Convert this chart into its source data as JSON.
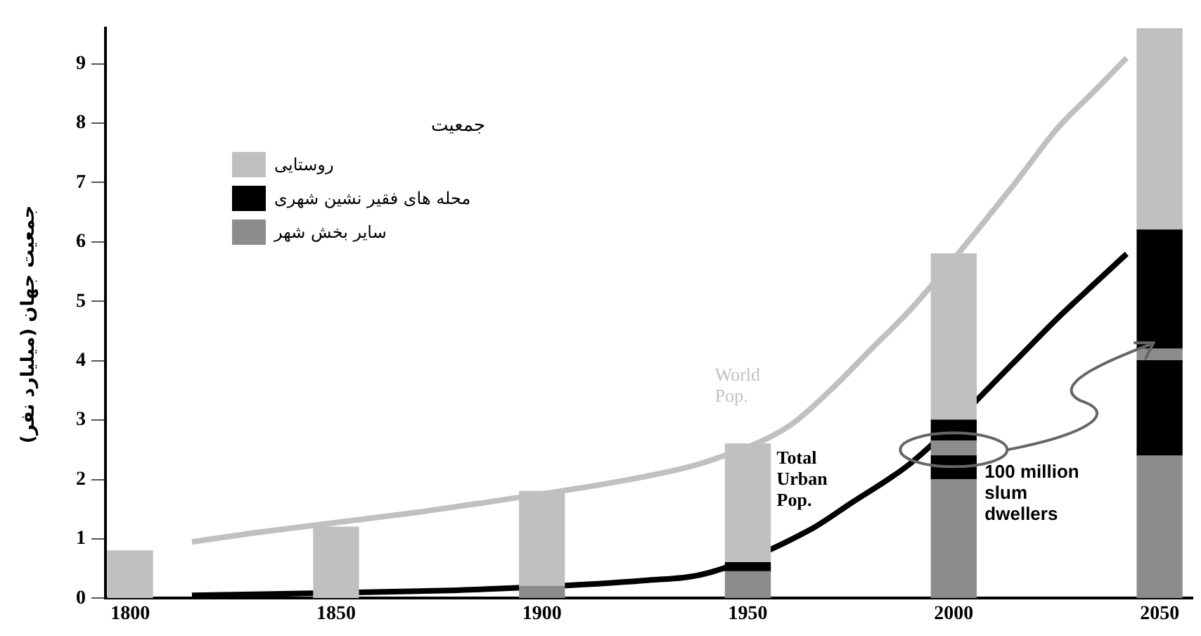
{
  "chart_data": {
    "type": "bar",
    "stacked": true,
    "ylabel": "جمعیت جهان (میلیارد نفر)",
    "legend_title": "جمعیت",
    "legend": "top left",
    "grid": false,
    "x": [
      1800,
      1850,
      1900,
      1950,
      2000,
      2050
    ],
    "xlim": [
      1794,
      2058
    ],
    "xticks": [
      1800,
      1850,
      1900,
      1950,
      2000,
      2050
    ],
    "ylim": [
      0,
      9.6
    ],
    "yticks": [
      0,
      1,
      2,
      3,
      4,
      5,
      6,
      7,
      8,
      9
    ],
    "series": [
      {
        "name": "سایر بخش شهر",
        "color": "#8c8c8c",
        "values": [
          null,
          null,
          0.2,
          0.45,
          2.0,
          2.4
        ]
      },
      {
        "name": "محله های فقیر نشین شهری",
        "color": "#000000",
        "values": [
          null,
          null,
          null,
          0.15,
          0.4,
          1.6
        ]
      },
      {
        "color": "#8c8c8c",
        "values": [
          null,
          null,
          null,
          null,
          0.25,
          0.2
        ]
      },
      {
        "color": "#000000",
        "values": [
          null,
          null,
          null,
          null,
          0.35,
          2.0
        ]
      },
      {
        "name": "روستایی",
        "color": "#c0c0c0",
        "values": [
          0.8,
          1.2,
          1.6,
          2.0,
          2.8,
          3.4
        ]
      },
      {
        "type": "line",
        "name": "World Pop.",
        "color": "#c0c0c0",
        "x": [
          1815,
          1830,
          1870,
          1885,
          1925,
          1940,
          1960,
          1970,
          1980,
          1990,
          2015,
          2025,
          2035,
          2042
        ],
        "values": [
          0.95,
          1.1,
          1.45,
          1.6,
          2.05,
          2.3,
          2.9,
          3.5,
          4.2,
          4.9,
          7.0,
          7.9,
          8.6,
          9.1
        ]
      },
      {
        "type": "line",
        "name": "Total Urban Pop.",
        "color": "#000000",
        "x": [
          1815,
          1870,
          1885,
          1925,
          1940,
          1965,
          1975,
          1990,
          2015,
          2025,
          2035,
          2042
        ],
        "values": [
          0.05,
          0.12,
          0.15,
          0.3,
          0.42,
          1.15,
          1.6,
          2.3,
          4.0,
          4.7,
          5.35,
          5.8
        ]
      }
    ],
    "annotations": [
      {
        "text": "100 million slum dwellers",
        "x": 2000,
        "y": 2.5
      }
    ]
  }
}
